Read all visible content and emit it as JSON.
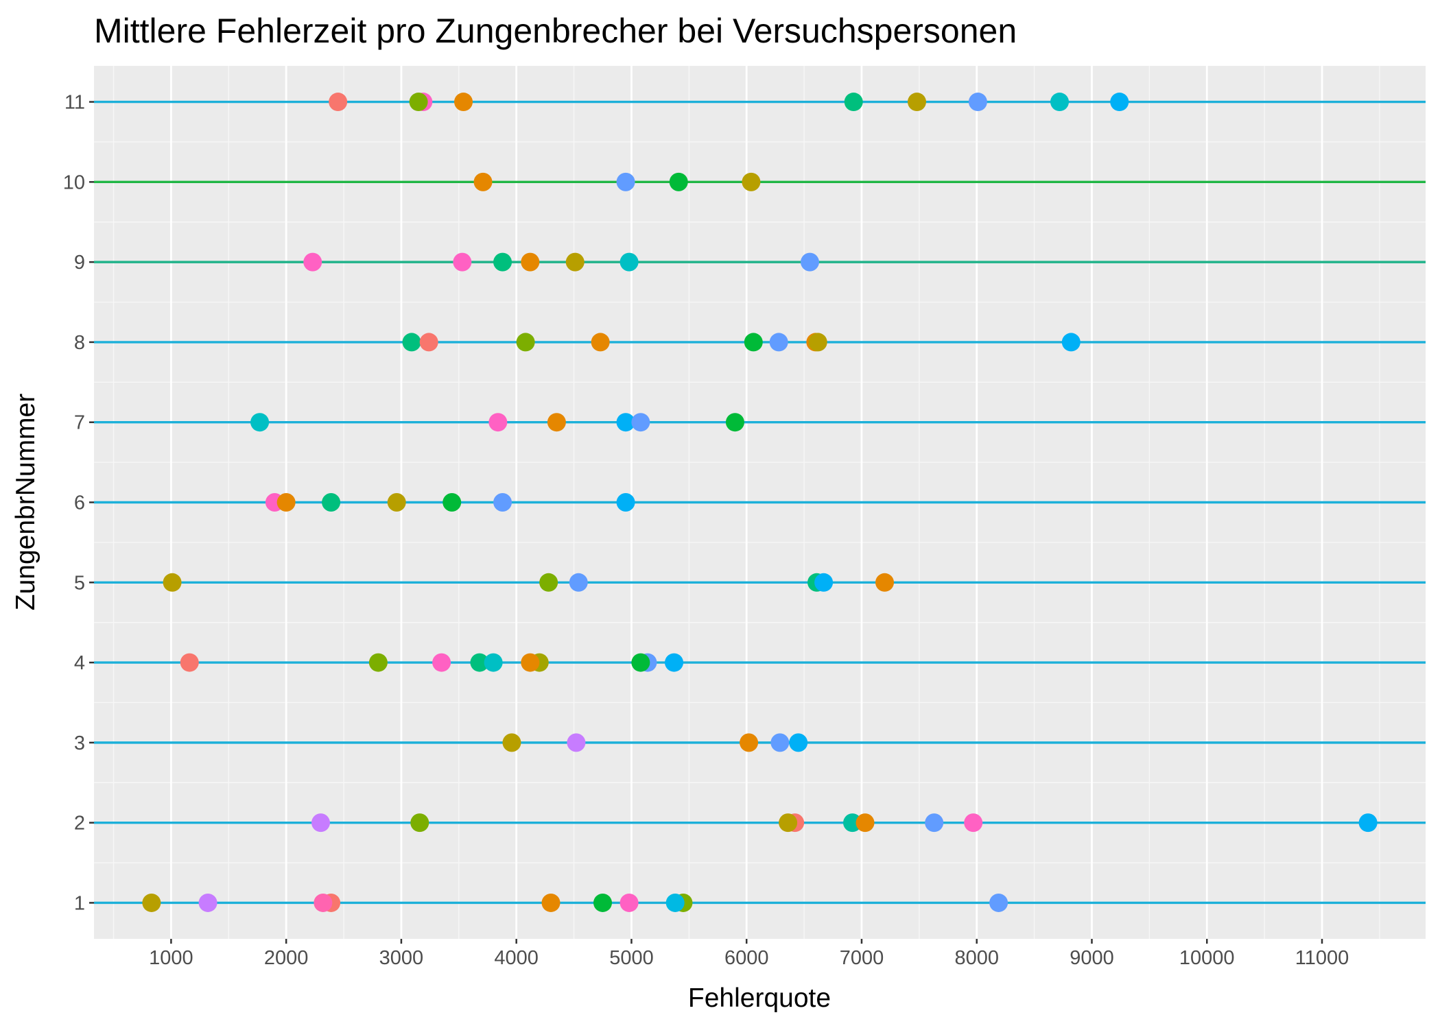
{
  "chart_data": {
    "type": "scatter",
    "title": "Mittlere Fehlerzeit pro Zungenbrecher bei Versuchspersonen",
    "xlabel": "Fehlerquote",
    "ylabel": "ZungenbrNummer",
    "xlim": [
      330,
      11900
    ],
    "ylim": [
      0.55,
      11.45
    ],
    "x_ticks": [
      1000,
      2000,
      3000,
      4000,
      5000,
      6000,
      7000,
      8000,
      9000,
      10000,
      11000
    ],
    "y_ticks": [
      1,
      2,
      3,
      4,
      5,
      6,
      7,
      8,
      9,
      10,
      11
    ],
    "grid": true,
    "legend": "none",
    "colors": {
      "panel": "#EBEBEB",
      "grid_major": "#FFFFFF",
      "grid_minor": "#F7F7F7",
      "row_line_default": "#1CB0D9",
      "row_line_10": "#20B645",
      "row_line_9": "#21B38A"
    },
    "rows": [
      {
        "y": 1,
        "line_color": "#1CB0D9",
        "points": [
          {
            "x": 830,
            "color": "#B79F00"
          },
          {
            "x": 1320,
            "color": "#C77CFF"
          },
          {
            "x": 2390,
            "color": "#F8766D"
          },
          {
            "x": 2320,
            "color": "#FF64B0"
          },
          {
            "x": 4300,
            "color": "#E58700"
          },
          {
            "x": 4750,
            "color": "#00BA38"
          },
          {
            "x": 5450,
            "color": "#7CAE00"
          },
          {
            "x": 4980,
            "color": "#FF61C3"
          },
          {
            "x": 5380,
            "color": "#00B9E3"
          },
          {
            "x": 8190,
            "color": "#619CFF"
          }
        ]
      },
      {
        "y": 2,
        "line_color": "#1CB0D9",
        "points": [
          {
            "x": 2300,
            "color": "#C77CFF"
          },
          {
            "x": 3160,
            "color": "#7CAE00"
          },
          {
            "x": 6420,
            "color": "#F8766D"
          },
          {
            "x": 6360,
            "color": "#B79F00"
          },
          {
            "x": 6920,
            "color": "#00BFA0"
          },
          {
            "x": 7030,
            "color": "#E58700"
          },
          {
            "x": 7630,
            "color": "#619CFF"
          },
          {
            "x": 7970,
            "color": "#FF61C3"
          },
          {
            "x": 11400,
            "color": "#00B0F6"
          }
        ]
      },
      {
        "y": 3,
        "line_color": "#1CB0D9",
        "points": [
          {
            "x": 3960,
            "color": "#B79F00"
          },
          {
            "x": 4520,
            "color": "#C77CFF"
          },
          {
            "x": 6020,
            "color": "#E58700"
          },
          {
            "x": 6290,
            "color": "#619CFF"
          },
          {
            "x": 6450,
            "color": "#00B0F6"
          }
        ]
      },
      {
        "y": 4,
        "line_color": "#1CB0D9",
        "points": [
          {
            "x": 1160,
            "color": "#F8766D"
          },
          {
            "x": 2800,
            "color": "#7CAE00"
          },
          {
            "x": 3350,
            "color": "#FF61C3"
          },
          {
            "x": 3680,
            "color": "#00BF7D"
          },
          {
            "x": 3800,
            "color": "#00BFC4"
          },
          {
            "x": 4200,
            "color": "#A3A500"
          },
          {
            "x": 4120,
            "color": "#E58700"
          },
          {
            "x": 5140,
            "color": "#619CFF"
          },
          {
            "x": 5080,
            "color": "#00BA38"
          },
          {
            "x": 5370,
            "color": "#00B0F6"
          }
        ]
      },
      {
        "y": 5,
        "line_color": "#1CB0D9",
        "points": [
          {
            "x": 1010,
            "color": "#B79F00"
          },
          {
            "x": 4280,
            "color": "#7CAE00"
          },
          {
            "x": 4540,
            "color": "#619CFF"
          },
          {
            "x": 6610,
            "color": "#00BF7D"
          },
          {
            "x": 6670,
            "color": "#00B0F6"
          },
          {
            "x": 7200,
            "color": "#E58700"
          }
        ]
      },
      {
        "y": 6,
        "line_color": "#1CB0D9",
        "points": [
          {
            "x": 1900,
            "color": "#FF61C3"
          },
          {
            "x": 2000,
            "color": "#E58700"
          },
          {
            "x": 2390,
            "color": "#00BF7D"
          },
          {
            "x": 2960,
            "color": "#B79F00"
          },
          {
            "x": 3440,
            "color": "#00BA38"
          },
          {
            "x": 3880,
            "color": "#619CFF"
          },
          {
            "x": 4950,
            "color": "#00B0F6"
          }
        ]
      },
      {
        "y": 7,
        "line_color": "#1CB0D9",
        "points": [
          {
            "x": 1770,
            "color": "#00BFC4"
          },
          {
            "x": 3840,
            "color": "#FF61C3"
          },
          {
            "x": 4350,
            "color": "#E58700"
          },
          {
            "x": 4950,
            "color": "#00B0F6"
          },
          {
            "x": 5080,
            "color": "#619CFF"
          },
          {
            "x": 5900,
            "color": "#00BA38"
          }
        ]
      },
      {
        "y": 8,
        "line_color": "#1CB0D9",
        "points": [
          {
            "x": 3090,
            "color": "#00BF7D"
          },
          {
            "x": 3240,
            "color": "#F8766D"
          },
          {
            "x": 4080,
            "color": "#7CAE00"
          },
          {
            "x": 4730,
            "color": "#E58700"
          },
          {
            "x": 6060,
            "color": "#00BA38"
          },
          {
            "x": 6280,
            "color": "#619CFF"
          },
          {
            "x": 6600,
            "color": "#E58700"
          },
          {
            "x": 6620,
            "color": "#B79F00"
          },
          {
            "x": 8820,
            "color": "#00B0F6"
          }
        ]
      },
      {
        "y": 9,
        "line_color": "#21B38A",
        "points": [
          {
            "x": 2230,
            "color": "#FF61C3"
          },
          {
            "x": 3530,
            "color": "#FF61C3"
          },
          {
            "x": 3880,
            "color": "#00BF7D"
          },
          {
            "x": 4120,
            "color": "#E58700"
          },
          {
            "x": 4510,
            "color": "#B79F00"
          },
          {
            "x": 4980,
            "color": "#00BFC4"
          },
          {
            "x": 6550,
            "color": "#619CFF"
          }
        ]
      },
      {
        "y": 10,
        "line_color": "#20B645",
        "points": [
          {
            "x": 3710,
            "color": "#E58700"
          },
          {
            "x": 4950,
            "color": "#619CFF"
          },
          {
            "x": 5410,
            "color": "#00BA38"
          },
          {
            "x": 6040,
            "color": "#B79F00"
          }
        ]
      },
      {
        "y": 11,
        "line_color": "#1CB0D9",
        "points": [
          {
            "x": 2450,
            "color": "#F8766D"
          },
          {
            "x": 3190,
            "color": "#FF61C3"
          },
          {
            "x": 3150,
            "color": "#7CAE00"
          },
          {
            "x": 3540,
            "color": "#E58700"
          },
          {
            "x": 6930,
            "color": "#00BF7D"
          },
          {
            "x": 7480,
            "color": "#B79F00"
          },
          {
            "x": 8010,
            "color": "#619CFF"
          },
          {
            "x": 8720,
            "color": "#00BFC4"
          },
          {
            "x": 9240,
            "color": "#00B0F6"
          }
        ]
      }
    ]
  }
}
